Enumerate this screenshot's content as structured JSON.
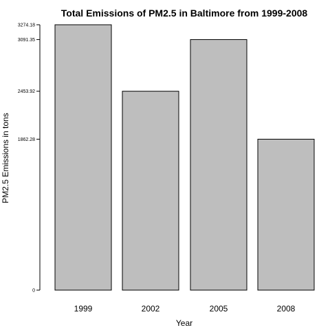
{
  "chart_data": {
    "type": "bar",
    "title": "Total Emissions of PM2.5 in Baltimore from 1999-2008",
    "xlabel": "Year",
    "ylabel": "PM2.5 Emissions in tons",
    "categories": [
      "1999",
      "2002",
      "2005",
      "2008"
    ],
    "values": [
      3274.18,
      2453.92,
      3091.35,
      1862.28
    ],
    "yticks": [
      {
        "value": 0,
        "label": "0"
      },
      {
        "value": 1862.28,
        "label": "1862.28"
      },
      {
        "value": 2453.92,
        "label": "2453.92"
      },
      {
        "value": 3091.35,
        "label": "3091.35"
      },
      {
        "value": 3274.18,
        "label": "3274.18"
      }
    ],
    "ylim": [
      0,
      3274.18
    ],
    "grid": false,
    "legend": "none",
    "colors": {
      "bar_fill": "#bebebe",
      "bar_stroke": "#000000",
      "axis": "#000000",
      "background": "#ffffff"
    }
  }
}
